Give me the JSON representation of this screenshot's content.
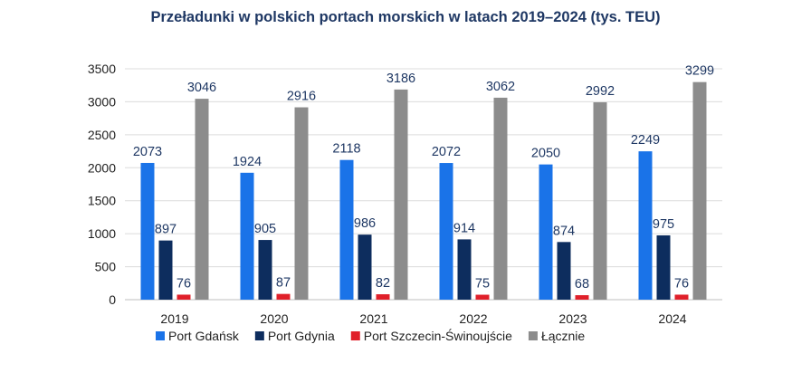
{
  "chart_data": {
    "type": "bar",
    "title": "Przeładunki w polskich portach morskich w latach 2019–2024 (tys. TEU)",
    "categories": [
      "2019",
      "2020",
      "2021",
      "2022",
      "2023",
      "2024"
    ],
    "series": [
      {
        "name": "Port Gdańsk",
        "color": "#1a73e8",
        "values": [
          2073,
          1924,
          2118,
          2072,
          2050,
          2249
        ]
      },
      {
        "name": "Port Gdynia",
        "color": "#0d2d5e",
        "values": [
          897,
          905,
          986,
          914,
          874,
          975
        ]
      },
      {
        "name": "Port Szczecin-Świnoujście",
        "color": "#e0202a",
        "values": [
          76,
          87,
          82,
          75,
          68,
          76
        ]
      },
      {
        "name": "Łącznie",
        "color": "#8c8c8c",
        "values": [
          3046,
          2916,
          3186,
          3062,
          2992,
          3299
        ]
      }
    ],
    "ylim": [
      0,
      3500
    ],
    "yticks": [
      "0",
      "500",
      "1000",
      "1500",
      "2000",
      "2500",
      "3000",
      "3500"
    ],
    "grid": true,
    "legend": "bottom"
  }
}
